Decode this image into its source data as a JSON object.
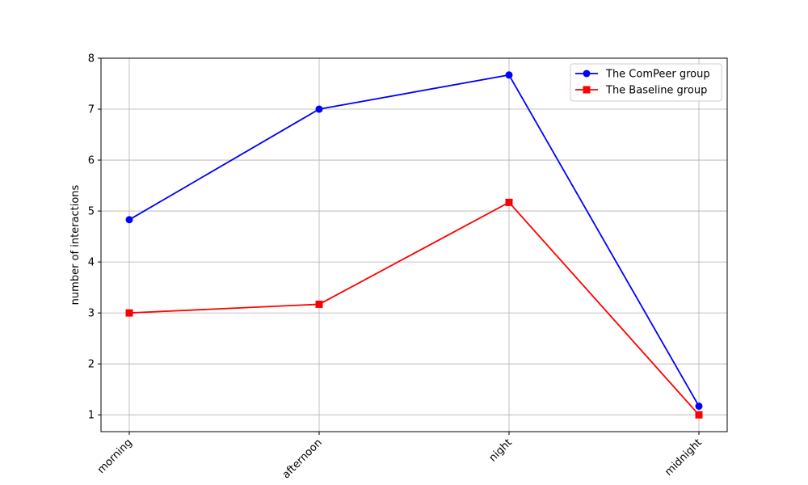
{
  "chart_data": {
    "type": "line",
    "categories": [
      "morning",
      "afternoon",
      "night",
      "midnight"
    ],
    "ylabel": "number of interactions",
    "xlabel": "",
    "ylim": [
      0.67,
      8.0
    ],
    "yticks": [
      1,
      2,
      3,
      4,
      5,
      6,
      7,
      8
    ],
    "grid": true,
    "legend_position": "top-right",
    "xtick_rotation": 45,
    "series": [
      {
        "name": "The ComPeer group",
        "values": [
          4.83,
          7.0,
          7.67,
          1.17
        ],
        "color": "#0000ff",
        "marker": "circle"
      },
      {
        "name": "The Baseline group",
        "values": [
          3.0,
          3.17,
          5.17,
          1.0
        ],
        "color": "#ff0000",
        "marker": "square"
      }
    ]
  }
}
